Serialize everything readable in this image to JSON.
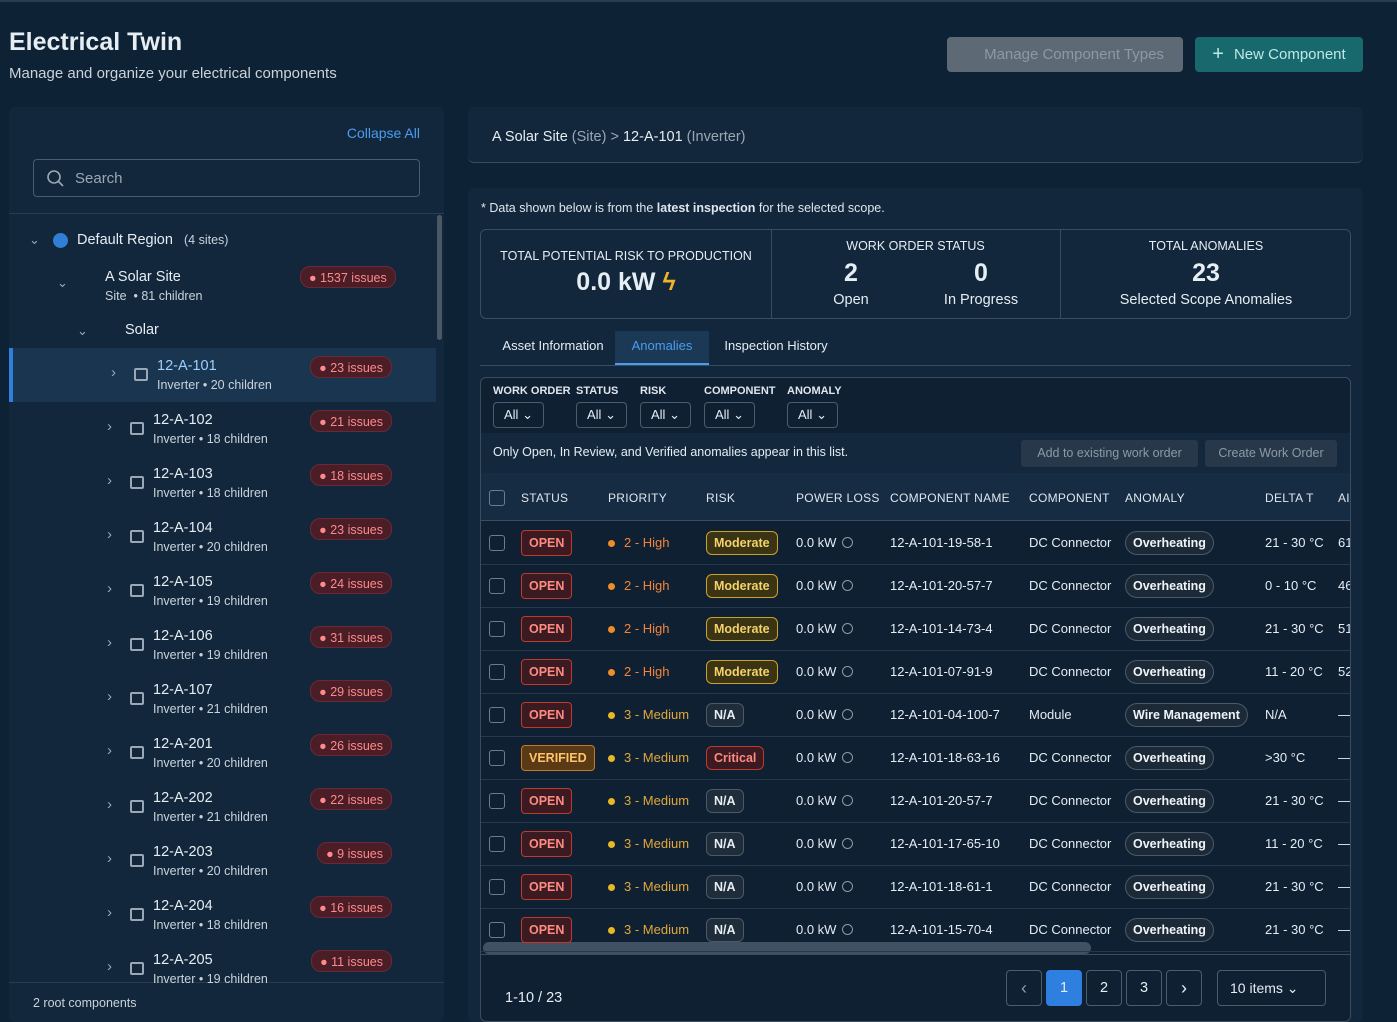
{
  "header": {
    "title": "Electrical Twin",
    "subtitle": "Manage and organize your electrical components",
    "buttons": [
      "Manage Component Types",
      "New Component"
    ]
  },
  "sidebar": {
    "collapse": "Collapse All",
    "search": "Search",
    "region": {
      "name": "Default Region",
      "count": "(4 sites)"
    },
    "site": {
      "name": "A Solar Site",
      "kind": "Site",
      "children": "81 children",
      "issues": "1537 issues"
    },
    "group": "Solar",
    "items": [
      [
        "12-A-101",
        "Inverter",
        "20 children",
        "23 issues"
      ],
      [
        "12-A-102",
        "Inverter",
        "18 children",
        "21 issues"
      ],
      [
        "12-A-103",
        "Inverter",
        "18 children",
        "18 issues"
      ],
      [
        "12-A-104",
        "Inverter",
        "20 children",
        "23 issues"
      ],
      [
        "12-A-105",
        "Inverter",
        "19 children",
        "24 issues"
      ],
      [
        "12-A-106",
        "Inverter",
        "19 children",
        "31 issues"
      ],
      [
        "12-A-107",
        "Inverter",
        "21 children",
        "29 issues"
      ],
      [
        "12-A-201",
        "Inverter",
        "20 children",
        "26 issues"
      ],
      [
        "12-A-202",
        "Inverter",
        "21 children",
        "22 issues"
      ],
      [
        "12-A-203",
        "Inverter",
        "20 children",
        "9 issues"
      ],
      [
        "12-A-204",
        "Inverter",
        "18 children",
        "16 issues"
      ],
      [
        "12-A-205",
        "Inverter",
        "19 children",
        "11 issues"
      ]
    ],
    "footer": "2 root components"
  },
  "breadcrumb": {
    "site": "A Solar Site",
    "site_kind": "(Site)",
    "sep": ">",
    "asset": "12-A-101",
    "asset_kind": "(Inverter)"
  },
  "note": {
    "before": "* Data shown below is from the",
    "bold": "latest inspection",
    "after": "for the selected scope."
  },
  "stats": {
    "risk_label": "TOTAL POTENTIAL RISK TO PRODUCTION",
    "risk_value": "0.0 kW",
    "wo_label": "WORK ORDER STATUS",
    "open": 2,
    "open_label": "Open",
    "progress": 0,
    "progress_label": "In Progress",
    "anom_label": "TOTAL ANOMALIES",
    "anom": 23,
    "anom_sub": "Selected Scope Anomalies"
  },
  "tabs": [
    "Asset Information",
    "Anomalies",
    "Inspection History"
  ],
  "filters": [
    [
      "WORK ORDER",
      "All"
    ],
    [
      "STATUS",
      "All"
    ],
    [
      "RISK",
      "All"
    ],
    [
      "COMPONENT",
      "All"
    ],
    [
      "ANOMALY",
      "All"
    ]
  ],
  "info": "Only Open, In Review, and Verified anomalies appear in this list.",
  "actions": [
    "Add to existing work order",
    "Create Work Order"
  ],
  "table": {
    "columns": [
      "STATUS",
      "PRIORITY",
      "RISK",
      "POWER LOSS",
      "COMPONENT NAME",
      "COMPONENT",
      "ANOMALY",
      "DELTA T",
      "AI"
    ],
    "rows": [
      [
        "OPEN",
        "2 - High",
        "Moderate",
        "0.0 kW",
        "12-A-101-19-58-1",
        "DC Connector",
        "Overheating",
        "21 - 30 °C",
        "61"
      ],
      [
        "OPEN",
        "2 - High",
        "Moderate",
        "0.0 kW",
        "12-A-101-20-57-7",
        "DC Connector",
        "Overheating",
        "0 - 10 °C",
        "46"
      ],
      [
        "OPEN",
        "2 - High",
        "Moderate",
        "0.0 kW",
        "12-A-101-14-73-4",
        "DC Connector",
        "Overheating",
        "21 - 30 °C",
        "51"
      ],
      [
        "OPEN",
        "2 - High",
        "Moderate",
        "0.0 kW",
        "12-A-101-07-91-9",
        "DC Connector",
        "Overheating",
        "11 - 20 °C",
        "52"
      ],
      [
        "OPEN",
        "3 - Medium",
        "N/A",
        "0.0 kW",
        "12-A-101-04-100-7",
        "Module",
        "Wire Management",
        "N/A",
        "—"
      ],
      [
        "VERIFIED",
        "3 - Medium",
        "Critical",
        "0.0 kW",
        "12-A-101-18-63-16",
        "DC Connector",
        "Overheating",
        ">30 °C",
        "—"
      ],
      [
        "OPEN",
        "3 - Medium",
        "N/A",
        "0.0 kW",
        "12-A-101-20-57-7",
        "DC Connector",
        "Overheating",
        "21 - 30 °C",
        "—"
      ],
      [
        "OPEN",
        "3 - Medium",
        "N/A",
        "0.0 kW",
        "12-A-101-17-65-10",
        "DC Connector",
        "Overheating",
        "11 - 20 °C",
        "—"
      ],
      [
        "OPEN",
        "3 - Medium",
        "N/A",
        "0.0 kW",
        "12-A-101-18-61-1",
        "DC Connector",
        "Overheating",
        "21 - 30 °C",
        "—"
      ],
      [
        "OPEN",
        "3 - Medium",
        "N/A",
        "0.0 kW",
        "12-A-101-15-70-4",
        "DC Connector",
        "Overheating",
        "21 - 30 °C",
        "—"
      ]
    ]
  },
  "pagination": {
    "range": "1-10 / 23",
    "pages": [
      1,
      2,
      3
    ],
    "size": "10 items"
  }
}
